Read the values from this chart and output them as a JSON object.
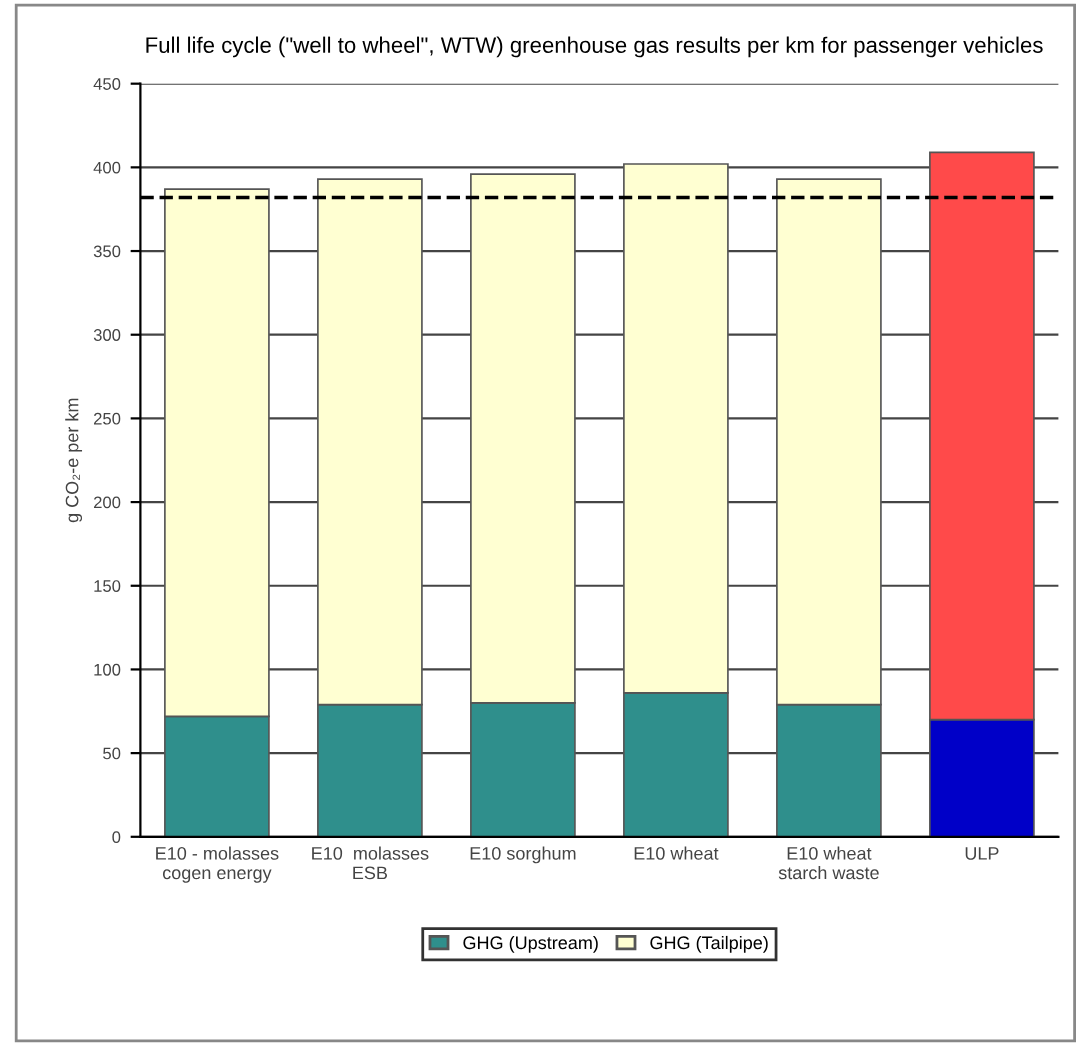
{
  "chart_data": {
    "type": "bar",
    "title": "Full life cycle (\"well to wheel\", WTW) greenhouse gas results per km for passenger vehicles",
    "ylabel": "g CO₂-e per km",
    "categories": [
      "E10 - molasses\ncogen energy",
      "E10  molasses\nESB",
      "E10 sorghum",
      "E10 wheat",
      "E10 wheat\nstarch waste",
      "ULP"
    ],
    "stacked": true,
    "series": [
      {
        "name": "GHG (Upstream)",
        "color": "#2f8f8c",
        "colors": [
          "#2f8f8c",
          "#2f8f8c",
          "#2f8f8c",
          "#2f8f8c",
          "#2f8f8c",
          "#0000c8"
        ],
        "values": [
          72,
          79,
          80,
          86,
          79,
          70
        ]
      },
      {
        "name": "GHG (Tailpipe)",
        "color": "#ffffd2",
        "colors": [
          "#ffffd2",
          "#ffffd2",
          "#ffffd2",
          "#ffffd2",
          "#ffffd2",
          "#ff4a4a"
        ],
        "values": [
          315,
          314,
          316,
          316,
          314,
          339
        ]
      }
    ],
    "ylim": [
      0,
      450
    ],
    "yticks": [
      0,
      50,
      100,
      150,
      200,
      250,
      300,
      350,
      400,
      450
    ],
    "ref_lines": [
      {
        "axis": "y",
        "value": 382,
        "color": "#000000",
        "line_style": "dashed"
      }
    ],
    "grid": "y",
    "legend": "bottom"
  }
}
